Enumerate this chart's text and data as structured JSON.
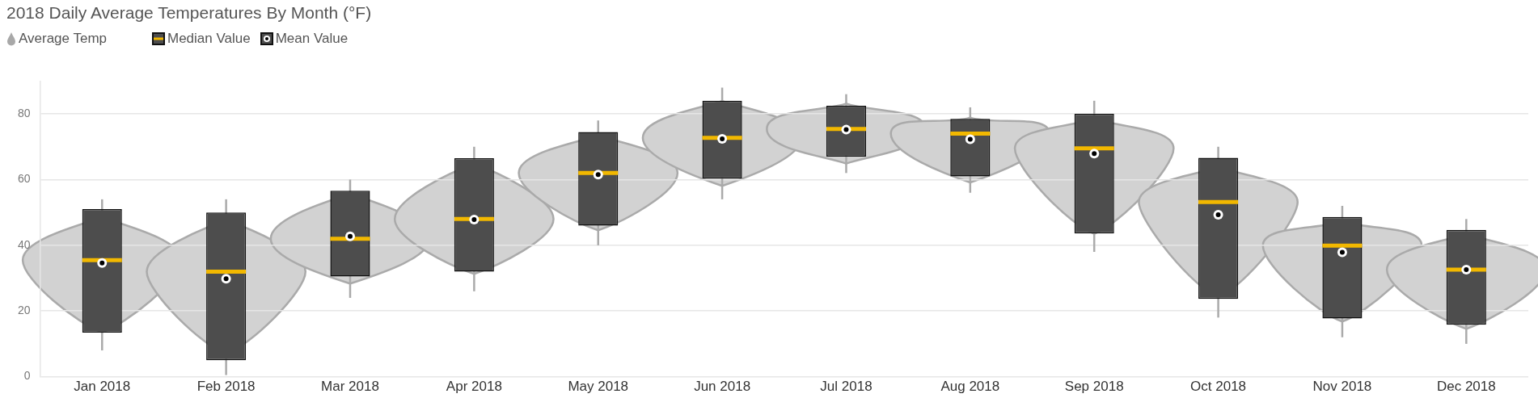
{
  "chart_data": {
    "type": "box",
    "title": "2018 Daily Average Temperatures By Month (°F)",
    "categories": [
      "Jan 2018",
      "Feb 2018",
      "Mar 2018",
      "Apr 2018",
      "May 2018",
      "Jun 2018",
      "Jul 2018",
      "Aug 2018",
      "Sep 2018",
      "Oct 2018",
      "Nov 2018",
      "Dec 2018"
    ],
    "series": [
      {
        "name": "Average Temp",
        "color": "#4d4d4d",
        "boxes": [
          {
            "low": 8,
            "q1": 13.4,
            "median": 35.5,
            "q3": 51,
            "high": 54,
            "mean": 34.6
          },
          {
            "low": 0.5,
            "q1": 5,
            "median": 32,
            "q3": 50,
            "high": 54,
            "mean": 29.8
          },
          {
            "low": 24,
            "q1": 30.5,
            "median": 42,
            "q3": 56.6,
            "high": 60,
            "mean": 42.7
          },
          {
            "low": 26,
            "q1": 32,
            "median": 48,
            "q3": 66.5,
            "high": 70,
            "mean": 47.8
          },
          {
            "low": 40,
            "q1": 46,
            "median": 62,
            "q3": 74.5,
            "high": 78,
            "mean": 61.5
          },
          {
            "low": 54,
            "q1": 60.3,
            "median": 72.7,
            "q3": 84,
            "high": 88,
            "mean": 72.4
          },
          {
            "low": 62,
            "q1": 67,
            "median": 75.4,
            "q3": 82.5,
            "high": 86,
            "mean": 75.2
          },
          {
            "low": 56,
            "q1": 61,
            "median": 74,
            "q3": 78.5,
            "high": 82,
            "mean": 72.3
          },
          {
            "low": 38,
            "q1": 43.6,
            "median": 69.5,
            "q3": 80,
            "high": 84,
            "mean": 67.9
          },
          {
            "low": 18,
            "q1": 23.7,
            "median": 53.2,
            "q3": 66.6,
            "high": 70,
            "mean": 49.3
          },
          {
            "low": 12,
            "q1": 17.7,
            "median": 39.9,
            "q3": 48.6,
            "high": 52,
            "mean": 37.9
          },
          {
            "low": 10,
            "q1": 15.8,
            "median": 32.6,
            "q3": 44.7,
            "high": 48,
            "mean": 32.6
          }
        ]
      }
    ],
    "annotations": [
      "Median Value",
      "Mean Value"
    ],
    "ylim": [
      0,
      90
    ],
    "yticks": [
      0,
      20,
      40,
      60,
      80
    ],
    "grid": "y",
    "legend": "top left"
  }
}
